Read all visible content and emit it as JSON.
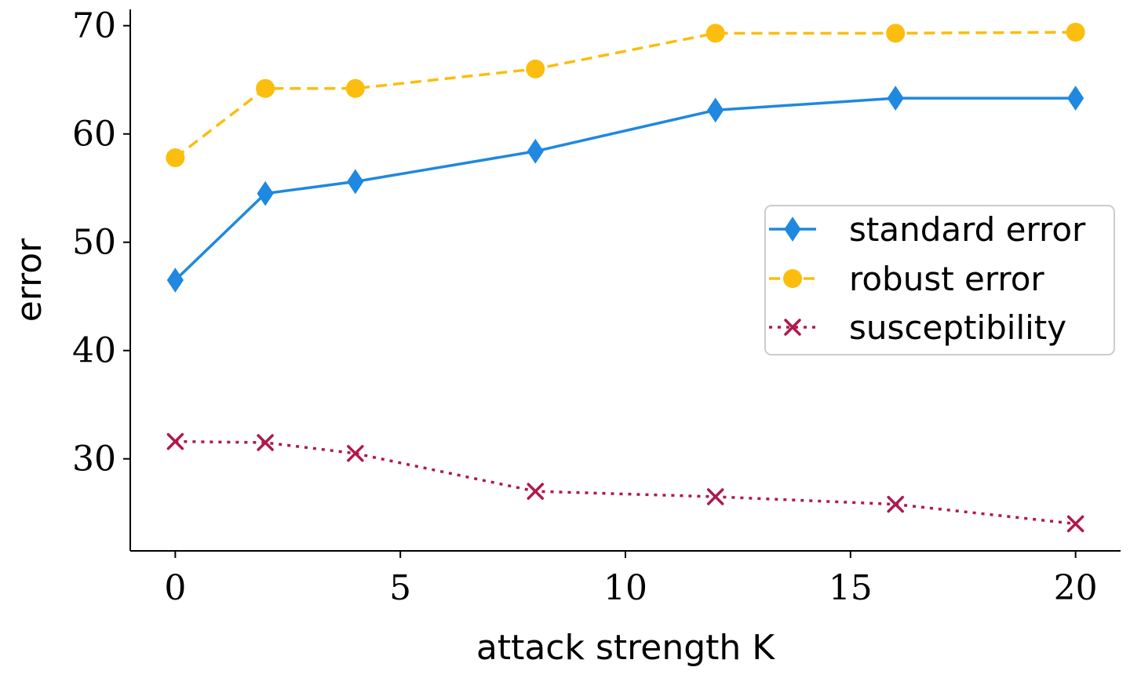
{
  "chart_data": {
    "type": "line",
    "title": "",
    "xlabel": "attack strength K",
    "ylabel": "error",
    "xlim": [
      -1,
      21
    ],
    "ylim": [
      21.5,
      71.5
    ],
    "xticks": [
      0,
      5,
      10,
      15,
      20
    ],
    "yticks": [
      30,
      40,
      50,
      60,
      70
    ],
    "grid": false,
    "legend_position": "center-right",
    "x": [
      0,
      2,
      4,
      8,
      12,
      16,
      20
    ],
    "series": [
      {
        "name": "standard error",
        "values": [
          46.5,
          54.5,
          55.6,
          58.4,
          62.2,
          63.3,
          63.3
        ],
        "color": "#1f88e0",
        "marker": "diamond",
        "linestyle": "solid"
      },
      {
        "name": "robust error",
        "values": [
          57.8,
          64.2,
          64.2,
          66.0,
          69.3,
          69.3,
          69.4
        ],
        "color": "#fbbd0e",
        "marker": "circle",
        "linestyle": "dashed"
      },
      {
        "name": "susceptibility",
        "values": [
          31.6,
          31.5,
          30.5,
          27.0,
          26.5,
          25.8,
          24.0
        ],
        "color": "#b0184b",
        "marker": "x",
        "linestyle": "dotted"
      }
    ]
  }
}
